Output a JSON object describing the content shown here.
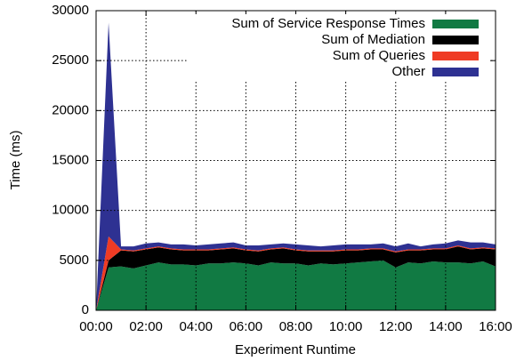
{
  "chart_data": {
    "type": "stacked_area",
    "xlabel": "Experiment Runtime",
    "ylabel": "Time (ms)",
    "x": [
      0,
      0.5,
      1,
      1.5,
      2,
      2.5,
      3,
      3.5,
      4,
      4.5,
      5,
      5.5,
      6,
      6.5,
      7,
      7.5,
      8,
      8.5,
      9,
      9.5,
      10,
      10.5,
      11,
      11.5,
      12,
      12.5,
      13,
      13.5,
      14,
      14.5,
      15,
      15.5,
      16
    ],
    "series": [
      {
        "name": "Sum of Service Response Times",
        "color": "#117a43",
        "values": [
          0,
          4300,
          4400,
          4200,
          4500,
          4800,
          4600,
          4600,
          4500,
          4700,
          4700,
          4800,
          4700,
          4500,
          4800,
          4700,
          4700,
          4500,
          4700,
          4600,
          4700,
          4800,
          4900,
          5000,
          4300,
          4800,
          4700,
          4900,
          4800,
          4800,
          4700,
          4900,
          4400
        ]
      },
      {
        "name": "Sum of Mediation",
        "color": "#000000",
        "values": [
          0,
          700,
          1600,
          1700,
          1600,
          1500,
          1500,
          1400,
          1500,
          1300,
          1400,
          1400,
          1300,
          1400,
          1300,
          1500,
          1300,
          1400,
          1200,
          1300,
          1300,
          1200,
          1200,
          1100,
          1500,
          1200,
          1300,
          1200,
          1300,
          1600,
          1400,
          1300,
          1700
        ]
      },
      {
        "name": "Sum of Queries",
        "color": "#ef3b24",
        "values": [
          0,
          2400,
          100,
          100,
          100,
          100,
          100,
          100,
          100,
          100,
          100,
          100,
          100,
          100,
          100,
          100,
          100,
          100,
          100,
          100,
          100,
          100,
          100,
          100,
          100,
          100,
          100,
          100,
          100,
          100,
          100,
          100,
          100
        ]
      },
      {
        "name": "Other",
        "color": "#2e3192",
        "values": [
          0,
          21400,
          300,
          400,
          500,
          400,
          400,
          500,
          400,
          500,
          500,
          500,
          400,
          500,
          400,
          400,
          500,
          500,
          400,
          500,
          500,
          500,
          400,
          500,
          500,
          600,
          300,
          400,
          500,
          500,
          600,
          500,
          400
        ]
      }
    ],
    "xlim": [
      0,
      16
    ],
    "xticks": [
      {
        "value": 0,
        "label": "00:00"
      },
      {
        "value": 2,
        "label": "02:00"
      },
      {
        "value": 4,
        "label": "04:00"
      },
      {
        "value": 6,
        "label": "06:00"
      },
      {
        "value": 8,
        "label": "08:00"
      },
      {
        "value": 10,
        "label": "10:00"
      },
      {
        "value": 12,
        "label": "12:00"
      },
      {
        "value": 14,
        "label": "14:00"
      },
      {
        "value": 16,
        "label": "16:00"
      }
    ],
    "ylim": [
      0,
      30000
    ],
    "yticks": [
      0,
      5000,
      10000,
      15000,
      20000,
      25000,
      30000
    ],
    "grid": true,
    "legend": "upper right"
  }
}
